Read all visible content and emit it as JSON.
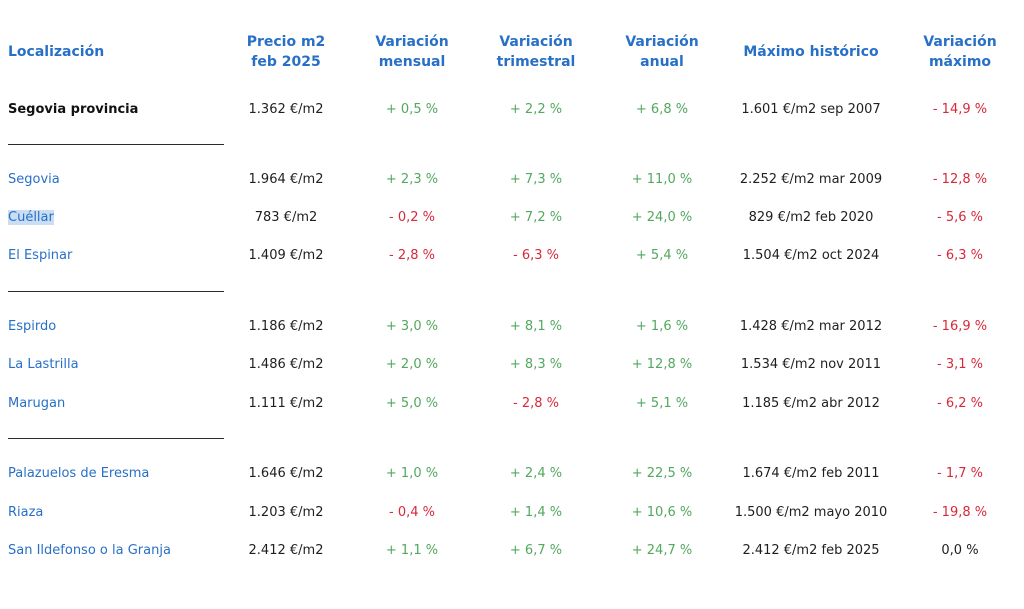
{
  "headers": {
    "location": "Localización",
    "price": "Precio m2\nfeb 2025",
    "monthly": "Variación\nmensual",
    "quarterly": "Variación\ntrimestral",
    "annual": "Variación\nanual",
    "max_hist": "Máximo histórico",
    "max_var": "Variación\nmáximo"
  },
  "rows": [
    {
      "location": "Segovia provincia",
      "price": "1.362 €/m2",
      "monthly": "+ 0,5 %",
      "quarterly": "+ 2,2 %",
      "annual": "+ 6,8 %",
      "max_hist": "1.601 €/m2 sep 2007",
      "max_var": "- 14,9 %"
    },
    {
      "location": "Segovia",
      "price": "1.964 €/m2",
      "monthly": "+ 2,3 %",
      "quarterly": "+ 7,3 %",
      "annual": "+ 11,0 %",
      "max_hist": "2.252 €/m2 mar 2009",
      "max_var": "- 12,8 %"
    },
    {
      "location": "Cuéllar",
      "price": "783 €/m2",
      "monthly": "- 0,2 %",
      "quarterly": "+ 7,2 %",
      "annual": "+ 24,0 %",
      "max_hist": "829 €/m2 feb 2020",
      "max_var": "- 5,6 %"
    },
    {
      "location": "El Espinar",
      "price": "1.409 €/m2",
      "monthly": "- 2,8 %",
      "quarterly": "- 6,3 %",
      "annual": "+ 5,4 %",
      "max_hist": "1.504 €/m2 oct 2024",
      "max_var": "- 6,3 %"
    },
    {
      "location": "Espirdo",
      "price": "1.186 €/m2",
      "monthly": "+ 3,0 %",
      "quarterly": "+ 8,1 %",
      "annual": "+ 1,6 %",
      "max_hist": "1.428 €/m2 mar 2012",
      "max_var": "- 16,9 %"
    },
    {
      "location": "La Lastrilla",
      "price": "1.486 €/m2",
      "monthly": "+ 2,0 %",
      "quarterly": "+ 8,3 %",
      "annual": "+ 12,8 %",
      "max_hist": "1.534 €/m2 nov 2011",
      "max_var": "- 3,1 %"
    },
    {
      "location": "Marugan",
      "price": "1.111 €/m2",
      "monthly": "+ 5,0 %",
      "quarterly": "- 2,8 %",
      "annual": "+ 5,1 %",
      "max_hist": "1.185 €/m2 abr 2012",
      "max_var": "- 6,2 %"
    },
    {
      "location": "Palazuelos de Eresma",
      "price": "1.646 €/m2",
      "monthly": "+ 1,0 %",
      "quarterly": "+ 2,4 %",
      "annual": "+ 22,5 %",
      "max_hist": "1.674 €/m2 feb 2011",
      "max_var": "- 1,7 %"
    },
    {
      "location": "Riaza",
      "price": "1.203 €/m2",
      "monthly": "- 0,4 %",
      "quarterly": "+ 1,4 %",
      "annual": "+ 10,6 %",
      "max_hist": "1.500 €/m2 mayo 2010",
      "max_var": "- 19,8 %"
    },
    {
      "location": "San Ildefonso o la Granja",
      "price": "2.412 €/m2",
      "monthly": "+ 1,1 %",
      "quarterly": "+ 6,7 %",
      "annual": "+ 24,7 %",
      "max_hist": "2.412 €/m2 feb 2025",
      "max_var": "0,0 %"
    }
  ],
  "colors": {
    "header": "#2870c7",
    "link": "#2870c7",
    "positive": "#52a85e",
    "negative": "#d6293a",
    "selection": "#c9def3"
  }
}
